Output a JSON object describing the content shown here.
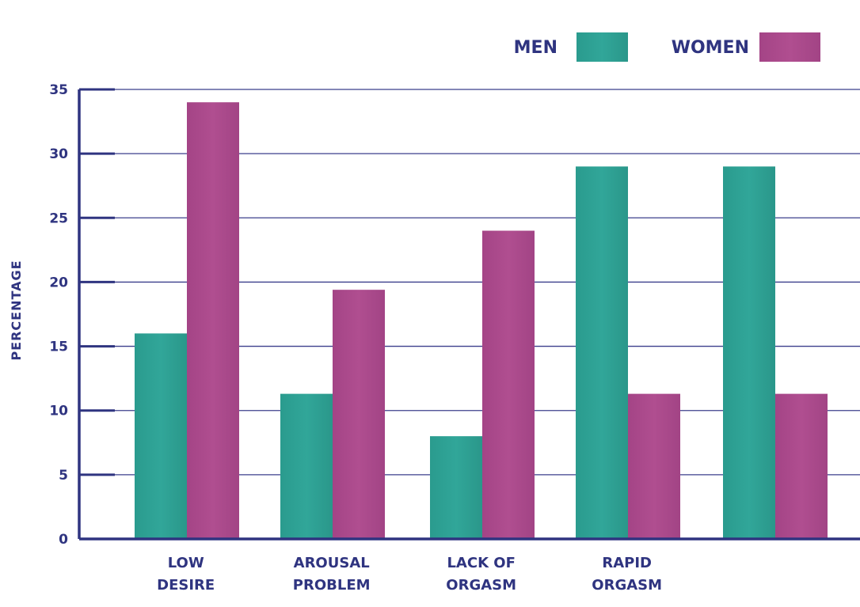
{
  "chart_data": {
    "type": "bar",
    "ylabel": "PERCENTAGE",
    "xlabel": "",
    "ylim": [
      0,
      35
    ],
    "yticks": [
      0,
      5,
      10,
      15,
      20,
      25,
      30,
      35
    ],
    "grid": true,
    "legend_position": "top-right",
    "categories": [
      [
        "LOW",
        "DESIRE"
      ],
      [
        "AROUSAL",
        "PROBLEM"
      ],
      [
        "LACK OF",
        "ORGASM"
      ],
      [
        "RAPID",
        "ORGASM"
      ],
      [
        "",
        ""
      ]
    ],
    "series": [
      {
        "name": "MEN",
        "color": "#2a9d8f",
        "values": [
          16,
          11.3,
          8,
          29,
          29
        ]
      },
      {
        "name": "WOMEN",
        "color": "#a8478a",
        "values": [
          34,
          19.4,
          24,
          11.3,
          11.3
        ]
      }
    ],
    "axis_color": "#2f3480",
    "grid_color": "#3b3f8c"
  }
}
